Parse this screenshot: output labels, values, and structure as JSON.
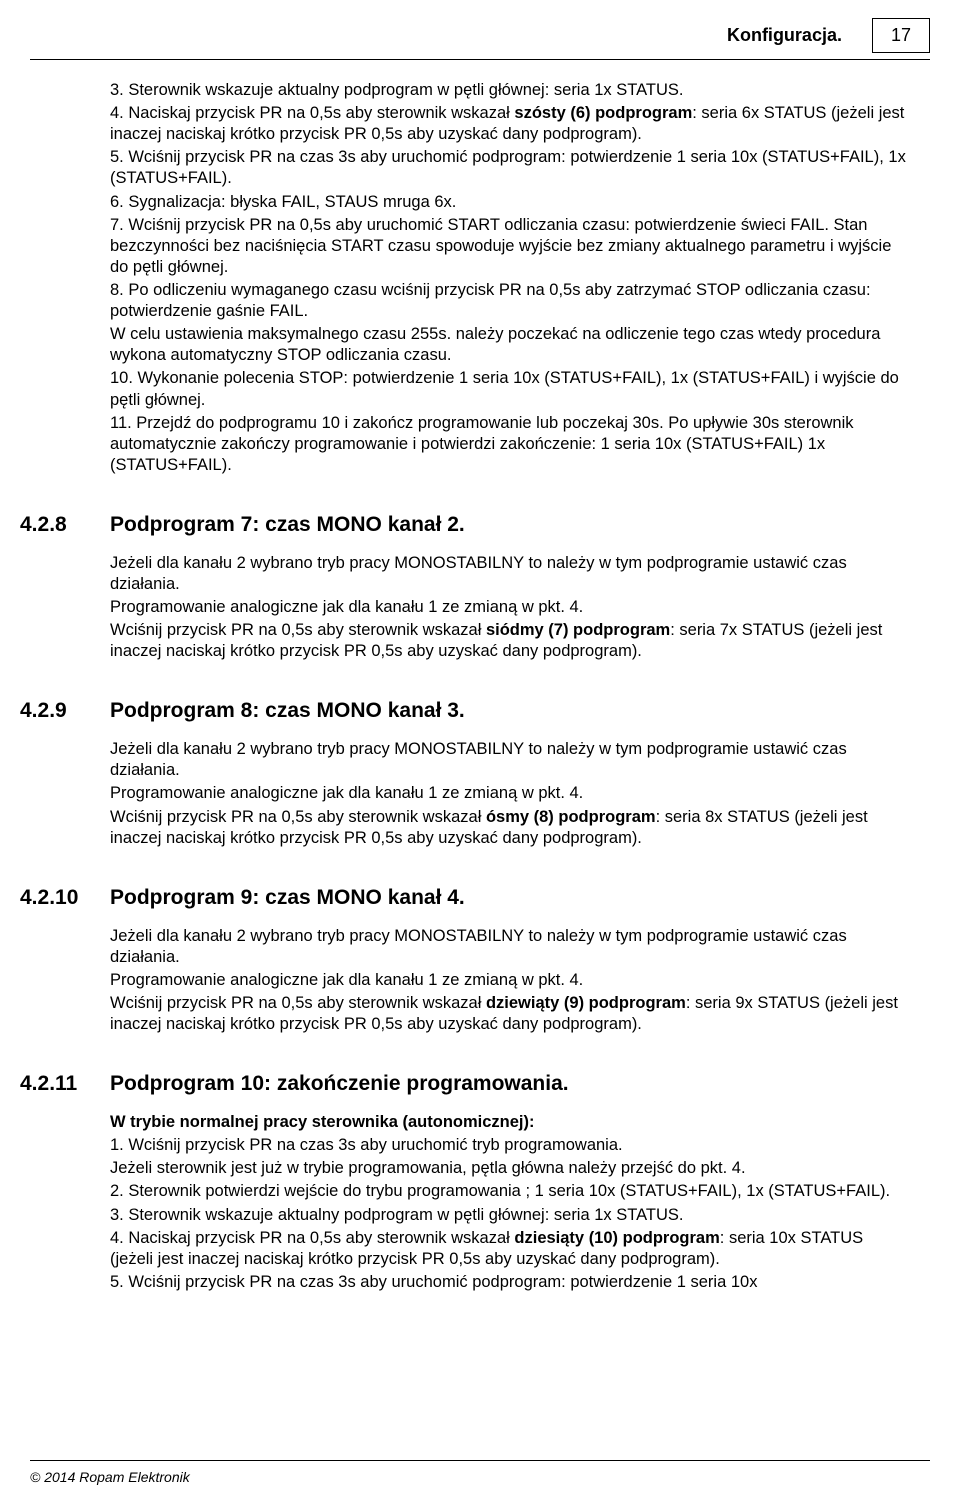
{
  "header": {
    "title": "Konfiguracja.",
    "page_number": "17"
  },
  "intro_paragraphs": [
    "3. Sterownik wskazuje aktualny podprogram w pętli głównej: seria 1x  STATUS.",
    "4. Naciskaj przycisk PR na 0,5s aby sterownik wskazał <b>szósty (6) podprogram</b>: seria 6x  STATUS (jeżeli jest inaczej naciskaj krótko przycisk PR 0,5s aby uzyskać dany podprogram).",
    "5. Wciśnij przycisk PR na czas 3s aby uruchomić podprogram: potwierdzenie 1 seria 10x (STATUS+FAIL), 1x (STATUS+FAIL).",
    "6. Sygnalizacja: błyska FAIL, STAUS mruga 6x.",
    "7. Wciśnij przycisk PR na 0,5s aby uruchomić START odliczania czasu: potwierdzenie świeci FAIL. Stan bezczynności bez naciśnięcia START czasu spowoduje wyjście bez zmiany aktualnego parametru i wyjście do pętli głównej.",
    "8. Po odliczeniu wymaganego czasu wciśnij przycisk PR na 0,5s aby zatrzymać STOP odliczania czasu: potwierdzenie gaśnie FAIL.",
    "W celu ustawienia maksymalnego czasu 255s. należy poczekać na odliczenie tego czas wtedy procedura wykona automatyczny STOP odliczania czasu.",
    "10. Wykonanie polecenia STOP: potwierdzenie 1 seria 10x (STATUS+FAIL), 1x (STATUS+FAIL) i wyjście do pętli głównej.",
    "11. Przejdź do podprogramu 10  i zakończ programowanie lub poczekaj 30s. Po upływie 30s sterownik automatycznie zakończy programowanie i potwierdzi zakończenie: 1 seria 10x (STATUS+FAIL)  1x (STATUS+FAIL)."
  ],
  "sections": [
    {
      "num": "4.2.8",
      "title": "Podprogram 7: czas MONO kanał 2.",
      "paragraphs": [
        "Jeżeli dla kanału 2 wybrano tryb pracy MONOSTABILNY to należy w tym podprogramie ustawić czas działania.",
        "Programowanie analogiczne jak dla kanału 1 ze zmianą w pkt. 4.",
        " Wciśnij przycisk PR na 0,5s aby sterownik wskazał <b>siódmy (7) podprogram</b>: seria 7x  STATUS (jeżeli jest inaczej naciskaj krótko przycisk PR 0,5s aby uzyskać dany podprogram)."
      ]
    },
    {
      "num": "4.2.9",
      "title": "Podprogram 8: czas MONO kanał 3.",
      "paragraphs": [
        "Jeżeli dla kanału 2 wybrano tryb pracy MONOSTABILNY to należy w tym podprogramie ustawić czas działania.",
        "Programowanie analogiczne jak dla kanału 1 ze zmianą w pkt. 4.",
        "Wciśnij przycisk PR na 0,5s aby sterownik wskazał <b>ósmy (8) podprogram</b>: seria 8x  STATUS (jeżeli jest inaczej naciskaj krótko przycisk PR 0,5s aby uzyskać dany podprogram)."
      ]
    },
    {
      "num": "4.2.10",
      "title": "Podprogram 9: czas MONO kanał 4.",
      "paragraphs": [
        "Jeżeli dla kanału 2 wybrano tryb pracy MONOSTABILNY to należy w tym podprogramie ustawić czas działania.",
        "Programowanie analogiczne jak dla kanału 1 ze zmianą w pkt. 4.",
        "Wciśnij przycisk PR na 0,5s aby sterownik wskazał <b>dziewiąty (9) podprogram</b>: seria 9x  STATUS (jeżeli jest inaczej naciskaj krótko przycisk PR 0,5s aby uzyskać dany podprogram)."
      ]
    },
    {
      "num": "4.2.11",
      "title": "Podprogram 10: zakończenie programowania.",
      "paragraphs": [
        "<b>W trybie normalnej pracy sterownika (autonomicznej):</b>",
        "1. Wciśnij  przycisk PR  na czas 3s aby uruchomić tryb programowania.",
        "Jeżeli sterownik jest już w trybie programowania, pętla główna należy przejść do pkt. 4.",
        "2. Sterownik potwierdzi wejście do trybu programowania ; 1 seria 10x (STATUS+FAIL), 1x (STATUS+FAIL).",
        "3. Sterownik wskazuje aktualny podprogram w pętli głównej: seria 1x  STATUS.",
        "4. Naciskaj przycisk PR na 0,5s aby sterownik wskazał <b>dziesiąty (10) podprogram</b>: seria 10x  STATUS (jeżeli jest inaczej naciskaj krótko przycisk PR 0,5s aby uzyskać dany podprogram).",
        "5. Wciśnij przycisk PR na czas 3s aby uruchomić podprogram: potwierdzenie 1 seria 10x"
      ]
    }
  ],
  "footer": "© 2014 Ropam Elektronik"
}
